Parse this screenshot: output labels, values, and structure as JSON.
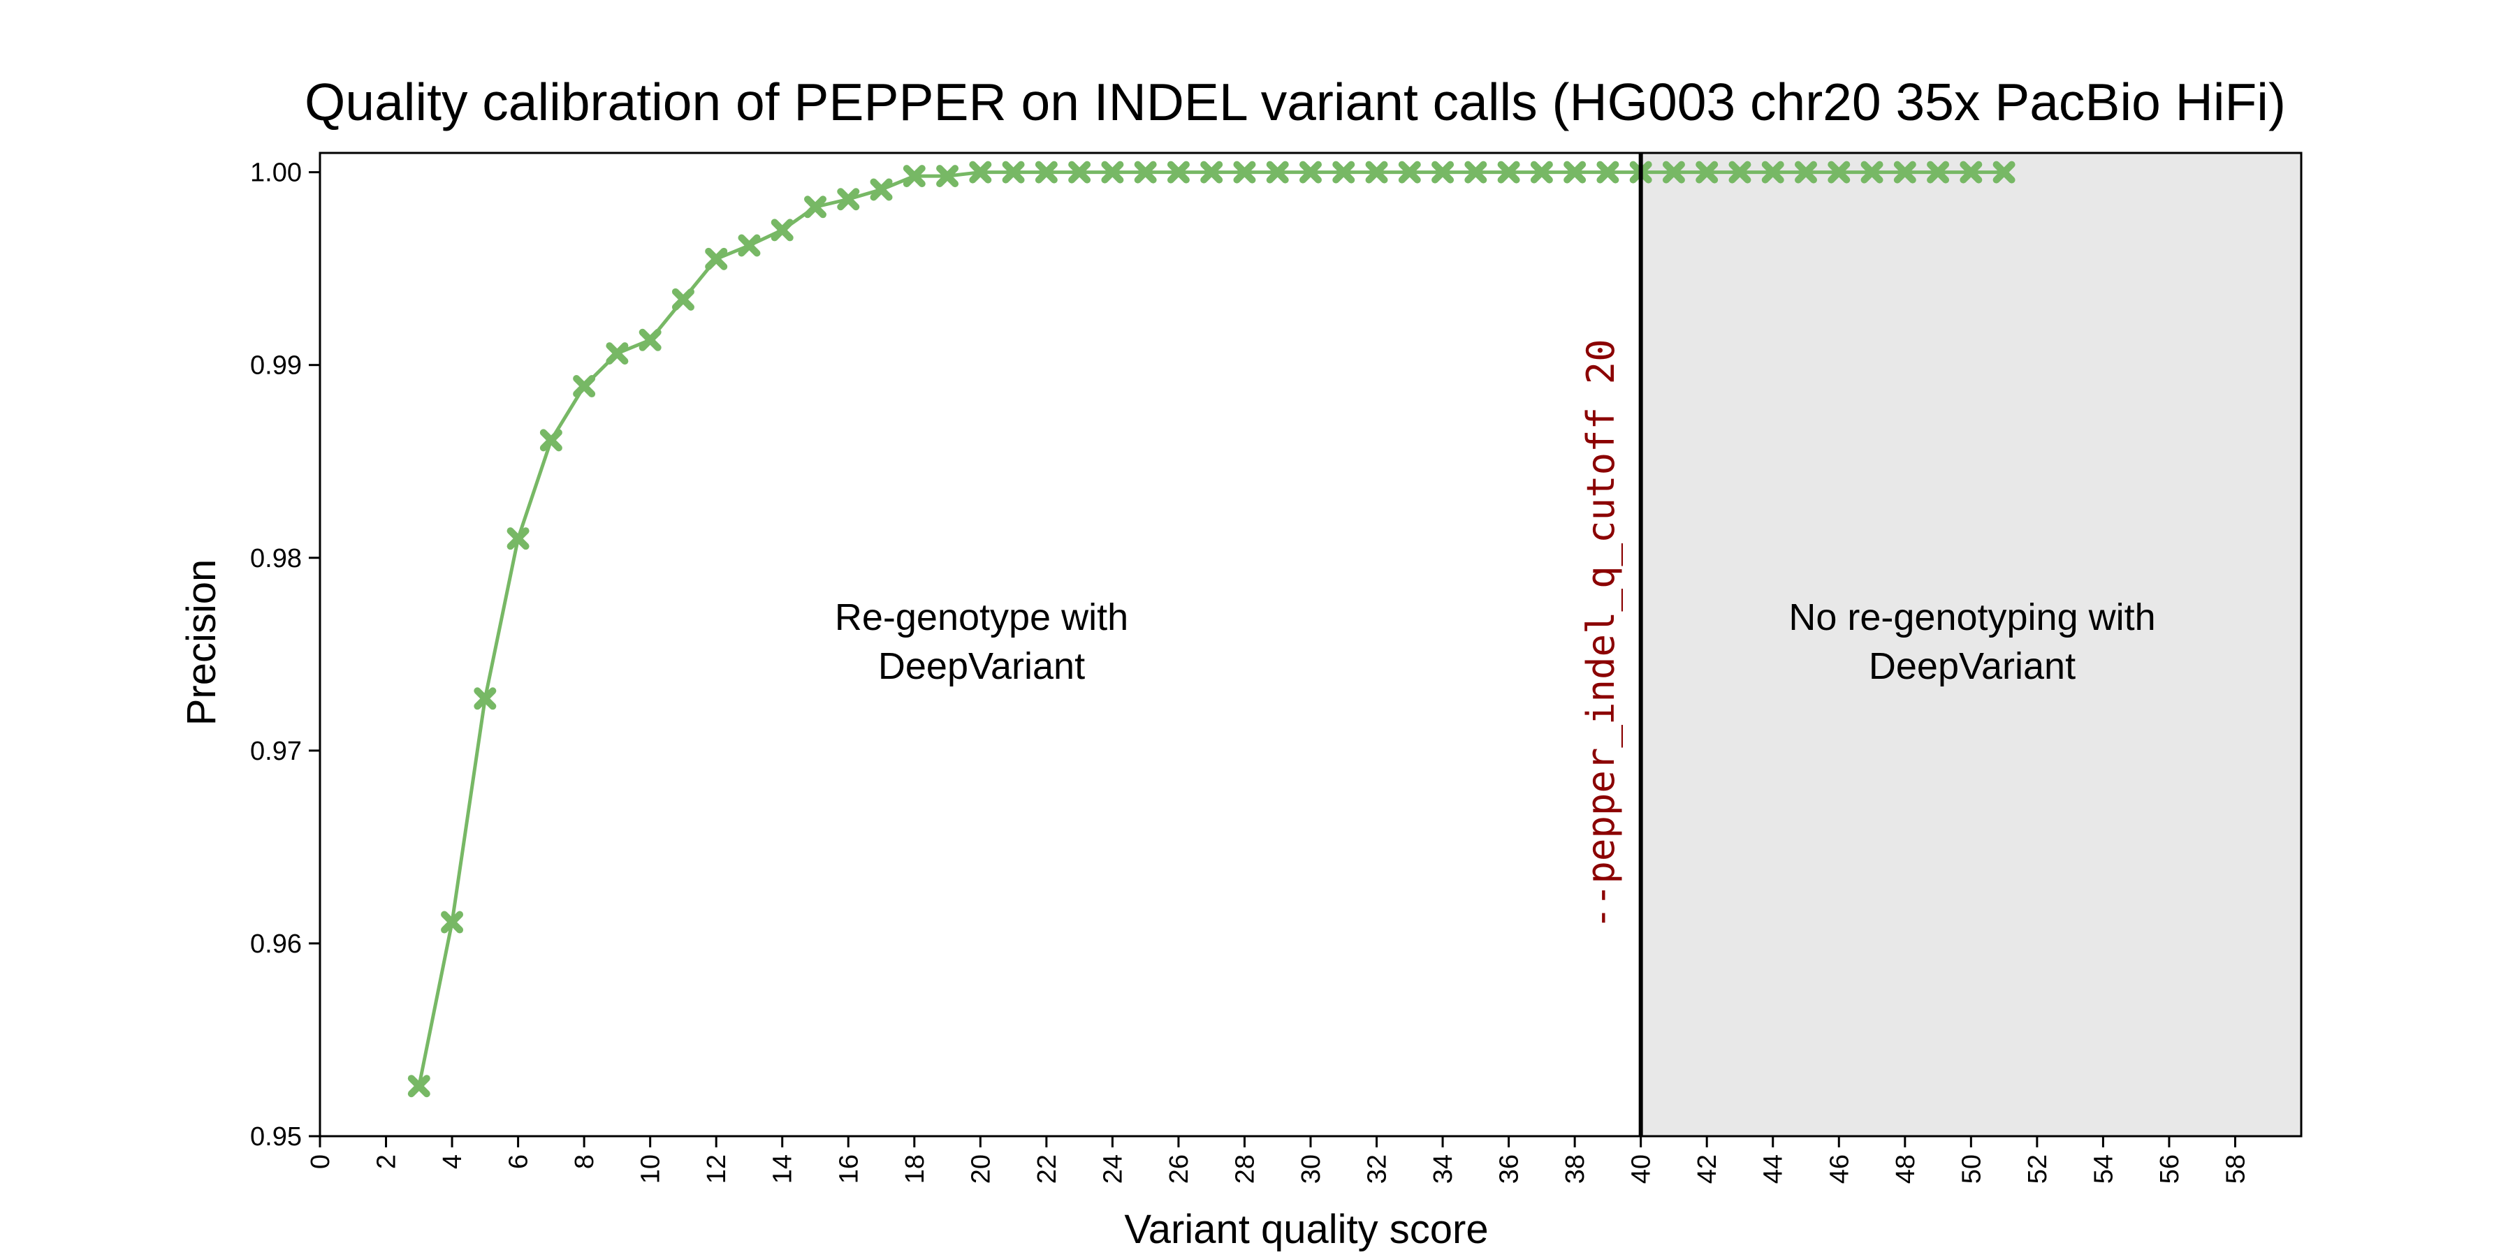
{
  "chart_data": {
    "type": "line",
    "title": "Quality calibration of PEPPER on INDEL variant calls (HG003 chr20 35x PacBio HiFi)",
    "xlabel": "Variant quality score",
    "ylabel": "Precision",
    "xlim": [
      0,
      60
    ],
    "ylim": [
      0.95,
      1.001
    ],
    "x_ticks": [
      0,
      2,
      4,
      6,
      8,
      10,
      12,
      14,
      16,
      18,
      20,
      22,
      24,
      26,
      28,
      30,
      32,
      34,
      36,
      38,
      40,
      42,
      44,
      46,
      48,
      50,
      52,
      54,
      56,
      58
    ],
    "x_tick_labels": [
      "0",
      "2",
      "4",
      "6",
      "8",
      "10",
      "12",
      "14",
      "16",
      "18",
      "20",
      "22",
      "24",
      "26",
      "28",
      "30",
      "32",
      "34",
      "36",
      "38",
      "40",
      "42",
      "44",
      "46",
      "48",
      "50",
      "52",
      "54",
      "56",
      "58"
    ],
    "y_ticks": [
      0.95,
      0.96,
      0.97,
      0.98,
      0.99,
      1.0
    ],
    "y_tick_labels": [
      "0.95",
      "0.96",
      "0.97",
      "0.98",
      "0.99",
      "1.00"
    ],
    "grid": false,
    "series": [
      {
        "color": "#77b865",
        "marker": "x",
        "x": [
          3,
          4,
          5,
          6,
          7,
          8,
          9,
          10,
          11,
          12,
          13,
          14,
          15,
          16,
          17,
          18,
          19,
          20,
          21,
          22,
          23,
          24,
          25,
          26,
          27,
          28,
          29,
          30,
          31,
          32,
          33,
          34,
          35,
          36,
          37,
          38,
          39,
          40,
          41,
          42,
          43,
          44,
          45,
          46,
          47,
          48,
          49,
          50,
          51
        ],
        "y": [
          0.9526,
          0.9611,
          0.9727,
          0.981,
          0.9861,
          0.9889,
          0.9906,
          0.9913,
          0.9934,
          0.9955,
          0.9962,
          0.997,
          0.9982,
          0.9986,
          0.9991,
          0.9998,
          0.9998,
          1.0,
          1.0,
          1.0,
          1.0,
          1.0,
          1.0,
          1.0,
          1.0,
          1.0,
          1.0,
          1.0,
          1.0,
          1.0,
          1.0,
          1.0,
          1.0,
          1.0,
          1.0,
          1.0,
          1.0,
          1.0,
          1.0,
          1.0,
          1.0,
          1.0,
          1.0,
          1.0,
          1.0,
          1.0,
          1.0,
          1.0,
          1.0
        ]
      }
    ],
    "cutoff": {
      "x": 40,
      "label": "--pepper_indel_q_cutoff 20",
      "label_color": "#8b0000",
      "line_color": "#000000"
    },
    "regions": [
      {
        "x_from": 0,
        "x_to": 40,
        "label_line1": "Re-genotype with",
        "label_line2": "DeepVariant",
        "fill": "#ffffff"
      },
      {
        "x_from": 40,
        "x_to": 60,
        "label_line1": "No re-genotyping with",
        "label_line2": "DeepVariant",
        "fill": "#e8e8e8"
      }
    ]
  }
}
